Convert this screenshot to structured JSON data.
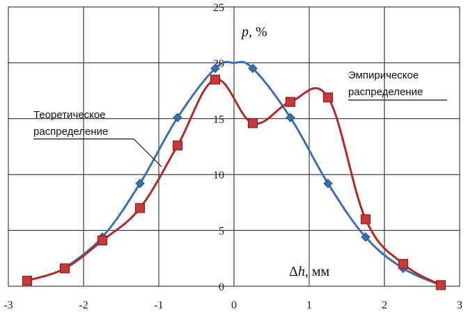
{
  "chart_data": {
    "type": "line",
    "x_ticks": [
      "-3",
      "-2",
      "-1",
      "0",
      "1",
      "2",
      "3"
    ],
    "y_ticks": [
      "0",
      "5",
      "10",
      "15",
      "20",
      "25"
    ],
    "xlim": [
      -3,
      3
    ],
    "ylim": [
      0,
      25
    ],
    "grid": true,
    "ylabel_var": "p",
    "ylabel_unit": ", %",
    "xlabel_delta": "Δ",
    "xlabel_var": "h",
    "xlabel_unit": ", мм",
    "series": [
      {
        "name_line1": "Теоретическое",
        "name_line2": "распределение",
        "color": "#3a6fb0",
        "marker": "diamond",
        "x": [
          -2.25,
          -1.75,
          -1.25,
          -0.75,
          -0.25,
          0.25,
          0.75,
          1.25,
          1.75,
          2.25,
          2.75
        ],
        "y": [
          1.6,
          4.4,
          9.2,
          15.1,
          19.5,
          19.5,
          15.1,
          9.2,
          4.4,
          1.6,
          0.1
        ]
      },
      {
        "name_line1": "Эмпирическое",
        "name_line2": "распределение",
        "color": "#b02a2a",
        "marker": "square",
        "x": [
          -2.75,
          -2.25,
          -1.75,
          -1.25,
          -0.75,
          -0.25,
          0.25,
          0.75,
          1.25,
          1.75,
          2.25,
          2.75
        ],
        "y": [
          0.5,
          1.6,
          4.1,
          7.0,
          12.6,
          18.5,
          14.6,
          16.5,
          16.9,
          6.0,
          2.0,
          0.1
        ]
      }
    ]
  }
}
